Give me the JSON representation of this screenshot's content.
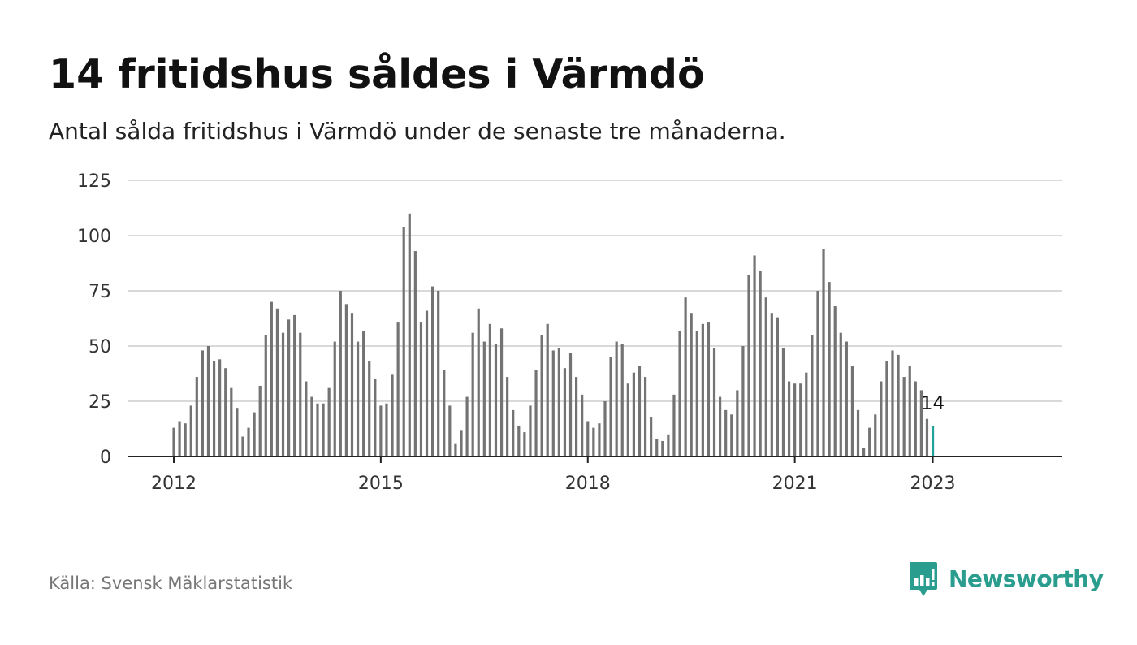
{
  "header": {
    "title": "14 fritidshus såldes i Värmdö",
    "subtitle": "Antal sålda fritidshus i Värmdö under de senaste tre månaderna."
  },
  "footer": {
    "source": "Källa: Svensk Mäklarstatistik"
  },
  "brand": {
    "name": "Newsworthy",
    "color": "#2a9d8f",
    "icon": "newsworthy-logo-icon"
  },
  "colors": {
    "bar": "#737373",
    "highlight": "#20a29a",
    "grid": "#d9d9d9",
    "axis": "#222222",
    "tick_text": "#333333"
  },
  "chart_data": {
    "type": "bar",
    "title": "14 fritidshus såldes i Värmdö",
    "subtitle": "Antal sålda fritidshus i Värmdö under de senaste tre månaderna.",
    "x_start": "2012-01",
    "x_end": "2023-01",
    "x_ticks": [
      "2012",
      "2015",
      "2018",
      "2021",
      "2023"
    ],
    "y_ticks": [
      0,
      25,
      50,
      75,
      100,
      125
    ],
    "ylim": [
      0,
      125
    ],
    "grid": true,
    "values": [
      13,
      16,
      15,
      23,
      36,
      48,
      50,
      43,
      44,
      40,
      31,
      22,
      9,
      13,
      20,
      32,
      55,
      70,
      67,
      56,
      62,
      64,
      56,
      34,
      27,
      24,
      24,
      31,
      52,
      75,
      69,
      65,
      52,
      57,
      43,
      35,
      23,
      24,
      37,
      61,
      104,
      110,
      93,
      61,
      66,
      77,
      75,
      39,
      23,
      6,
      12,
      27,
      56,
      67,
      52,
      60,
      51,
      58,
      36,
      21,
      14,
      11,
      23,
      39,
      55,
      60,
      48,
      49,
      40,
      47,
      36,
      28,
      16,
      13,
      15,
      25,
      45,
      52,
      51,
      33,
      38,
      41,
      36,
      18,
      8,
      7,
      10,
      28,
      57,
      72,
      65,
      57,
      60,
      61,
      49,
      27,
      21,
      19,
      30,
      50,
      82,
      91,
      84,
      72,
      65,
      63,
      49,
      34,
      33,
      33,
      38,
      55,
      75,
      94,
      79,
      68,
      56,
      52,
      41,
      21,
      4,
      13,
      19,
      34,
      43,
      48,
      46,
      36,
      41,
      34,
      30,
      17,
      14
    ],
    "highlight_label": "14"
  }
}
